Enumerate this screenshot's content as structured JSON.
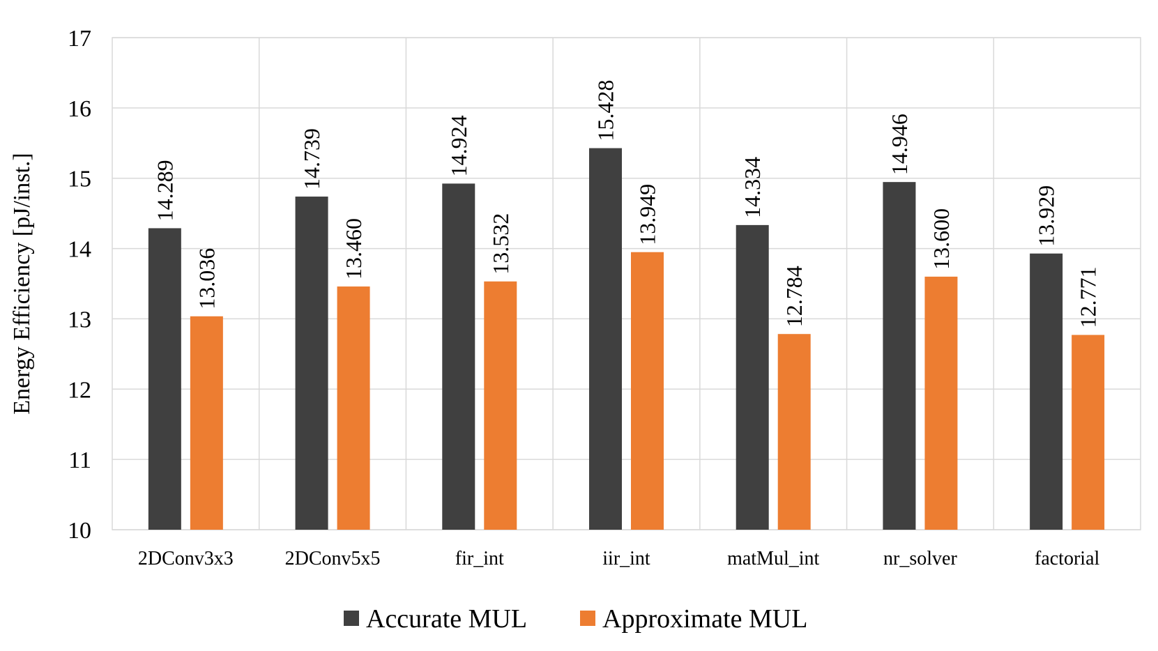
{
  "chart_data": {
    "type": "bar",
    "title": "",
    "xlabel": "",
    "ylabel": "Energy Efficiency [pJ/inst.]",
    "ylim": [
      10,
      17
    ],
    "yticks": [
      "10",
      "11",
      "12",
      "13",
      "14",
      "15",
      "16",
      "17"
    ],
    "grid": true,
    "legend_position": "bottom-center",
    "categories": [
      "2DConv3x3",
      "2DConv5x5",
      "fir_int",
      "iir_int",
      "matMul_int",
      "nr_solver",
      "factorial"
    ],
    "series": [
      {
        "name": "Accurate MUL",
        "color": "#404040",
        "values": [
          14.289,
          14.739,
          14.924,
          15.428,
          14.334,
          14.946,
          13.929
        ],
        "labels": [
          "14.289",
          "14.739",
          "14.924",
          "15.428",
          "14.334",
          "14.946",
          "13.929"
        ]
      },
      {
        "name": "Approximate MUL",
        "color": "#ed7d31",
        "values": [
          13.036,
          13.46,
          13.532,
          13.949,
          12.784,
          13.6,
          12.771
        ],
        "labels": [
          "13.036",
          "13.460",
          "13.532",
          "13.949",
          "12.784",
          "13.600",
          "12.771"
        ]
      }
    ]
  }
}
